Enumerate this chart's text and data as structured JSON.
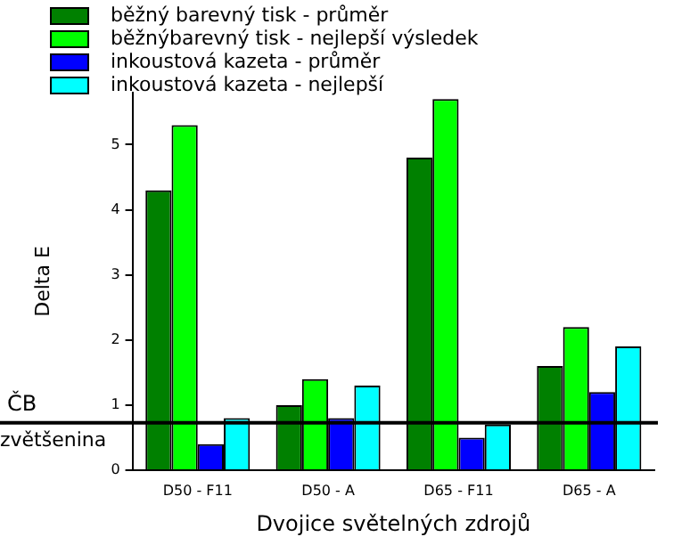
{
  "chart_data": {
    "type": "bar",
    "xlabel": "Dvojice světelných zdrojů",
    "ylabel": "Delta E",
    "categories": [
      "D50 - F11",
      "D50 - A",
      "D65 - F11",
      "D65 - A"
    ],
    "series": [
      {
        "name": "běžný barevný tisk - průměr",
        "color": "#008000",
        "values": [
          4.3,
          1.0,
          4.8,
          1.6
        ]
      },
      {
        "name": "běžnýbarevný tisk - nejlepší výsledek",
        "color": "#00ff00",
        "values": [
          5.3,
          1.4,
          5.7,
          2.2
        ]
      },
      {
        "name": "inkoustová kazeta - průměr",
        "color": "#0000ff",
        "values": [
          0.4,
          0.8,
          0.5,
          1.2
        ]
      },
      {
        "name": "inkoustová kazeta - nejlepší",
        "color": "#00ffff",
        "values": [
          0.8,
          1.3,
          0.7,
          1.9
        ]
      }
    ],
    "ylim": [
      0,
      5.8
    ],
    "yticks": [
      0,
      1,
      2,
      3,
      4,
      5
    ],
    "grid": false,
    "legend": "top",
    "ref_lines": [
      {
        "axis": "y",
        "value": 0.73,
        "label": "ČB",
        "color": "#000000"
      }
    ],
    "annotations": [
      {
        "text": "zvětšenina",
        "y": 0.73
      }
    ]
  }
}
